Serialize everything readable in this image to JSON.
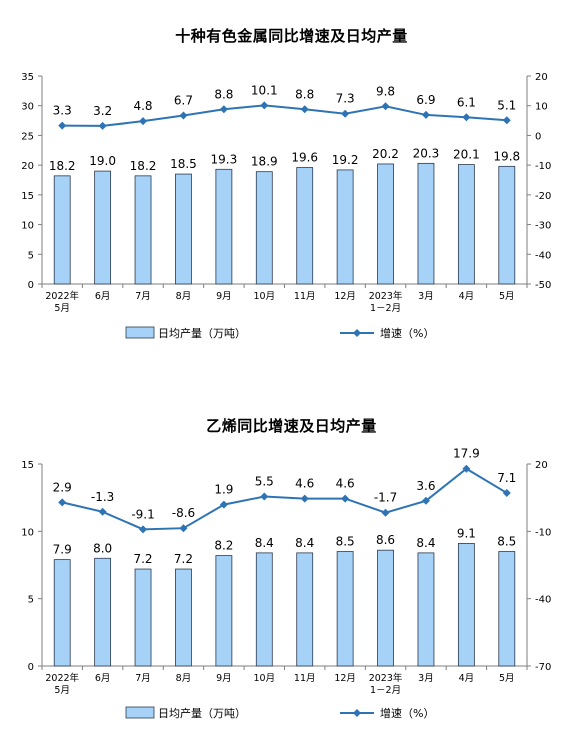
{
  "chart_data": [
    {
      "type": "bar+line",
      "title": "十种有色金属同比增速及日均产量",
      "categories": [
        [
          "2022年",
          "5月"
        ],
        [
          "6月"
        ],
        [
          "7月"
        ],
        [
          "8月"
        ],
        [
          "9月"
        ],
        [
          "10月"
        ],
        [
          "11月"
        ],
        [
          "12月"
        ],
        [
          "2023年",
          "1－2月"
        ],
        [
          "3月"
        ],
        [
          "4月"
        ],
        [
          "5月"
        ]
      ],
      "series": [
        {
          "name": "日均产量（万吨）",
          "type": "bar",
          "axis": "left",
          "values": [
            18.2,
            19.0,
            18.2,
            18.5,
            19.3,
            18.9,
            19.6,
            19.2,
            20.2,
            20.3,
            20.1,
            19.8
          ],
          "labels": [
            "18.2",
            "19.0",
            "18.2",
            "18.5",
            "19.3",
            "18.9",
            "19.6",
            "19.2",
            "20.2",
            "20.3",
            "20.1",
            "19.8"
          ]
        },
        {
          "name": "增速（%）",
          "type": "line",
          "axis": "right",
          "values": [
            3.3,
            3.2,
            4.8,
            6.7,
            8.8,
            10.1,
            8.8,
            7.3,
            9.8,
            6.9,
            6.1,
            5.1
          ],
          "labels": [
            "3.3",
            "3.2",
            "4.8",
            "6.7",
            "8.8",
            "10.1",
            "8.8",
            "7.3",
            "9.8",
            "6.9",
            "6.1",
            "5.1"
          ]
        }
      ],
      "y_left": {
        "min": 0,
        "max": 35,
        "ticks": [
          "0",
          "5",
          "10",
          "15",
          "20",
          "25",
          "30",
          "35"
        ]
      },
      "y_right": {
        "min": -50,
        "max": 20,
        "ticks": [
          "-50",
          "-40",
          "-30",
          "-20",
          "-10",
          "0",
          "10",
          "20"
        ]
      },
      "legend_position": "bottom"
    },
    {
      "type": "bar+line",
      "title": "乙烯同比增速及日均产量",
      "categories": [
        [
          "2022年",
          "5月"
        ],
        [
          "6月"
        ],
        [
          "7月"
        ],
        [
          "8月"
        ],
        [
          "9月"
        ],
        [
          "10月"
        ],
        [
          "11月"
        ],
        [
          "12月"
        ],
        [
          "2023年",
          "1－2月"
        ],
        [
          "3月"
        ],
        [
          "4月"
        ],
        [
          "5月"
        ]
      ],
      "series": [
        {
          "name": "日均产量（万吨）",
          "type": "bar",
          "axis": "left",
          "values": [
            7.9,
            8.0,
            7.2,
            7.2,
            8.2,
            8.4,
            8.4,
            8.5,
            8.6,
            8.4,
            9.1,
            8.5
          ],
          "labels": [
            "7.9",
            "8.0",
            "7.2",
            "7.2",
            "8.2",
            "8.4",
            "8.4",
            "8.5",
            "8.6",
            "8.4",
            "9.1",
            "8.5"
          ]
        },
        {
          "name": "增速（%）",
          "type": "line",
          "axis": "right",
          "values": [
            2.9,
            -1.3,
            -9.1,
            -8.6,
            1.9,
            5.5,
            4.6,
            4.6,
            -1.7,
            3.6,
            17.9,
            7.1
          ],
          "labels": [
            "2.9",
            "-1.3",
            "-9.1",
            "-8.6",
            "1.9",
            "5.5",
            "4.6",
            "4.6",
            "-1.7",
            "3.6",
            "17.9",
            "7.1"
          ]
        }
      ],
      "y_left": {
        "min": 0,
        "max": 15,
        "ticks": [
          "0",
          "5",
          "10",
          "15"
        ]
      },
      "y_right": {
        "min": -70,
        "max": 20,
        "ticks": [
          "-70",
          "-40",
          "-10",
          "20"
        ]
      },
      "legend_position": "bottom"
    }
  ],
  "colors": {
    "bar_fill": "#a6d2f7",
    "bar_stroke": "#2b3a4f",
    "line": "#2e74b5",
    "axis": "#7f7f7f",
    "text": "#000000"
  }
}
